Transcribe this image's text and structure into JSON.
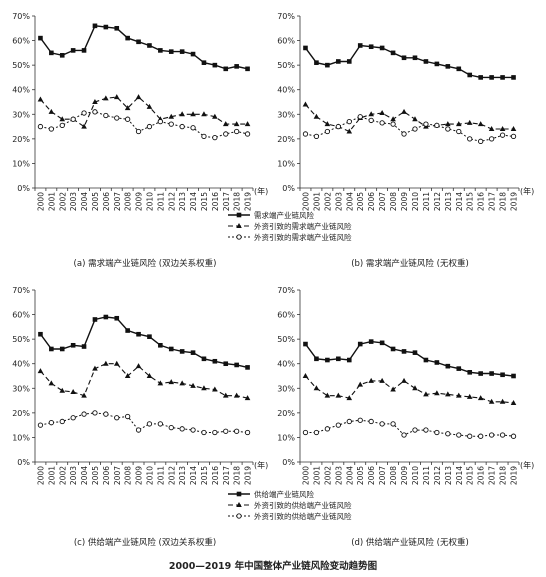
{
  "figure_title": "2000—2019 年中国整体产业链风险变动趋势图",
  "axis_unit": "(年)",
  "legends": [
    {
      "items": [
        {
          "label": "需求端产业链风险",
          "style": "solid-square"
        },
        {
          "label": "外资引致的需求端产业链风险",
          "style": "dash-triangle"
        },
        {
          "label": "外资引致的需求端产业链风险",
          "style": "dot-circle"
        }
      ]
    },
    {
      "items": [
        {
          "label": "供给端产业链风险",
          "style": "solid-square"
        },
        {
          "label": "外资引致的供给端产业链风险",
          "style": "dash-triangle"
        },
        {
          "label": "外资引致的供给端产业链风险",
          "style": "dot-circle"
        }
      ]
    }
  ],
  "chart_data": [
    {
      "type": "line",
      "caption": "(a) 需求端产业链风险 (双边关系权重)",
      "categories": [
        "2000",
        "2001",
        "2002",
        "2003",
        "2004",
        "2005",
        "2006",
        "2007",
        "2008",
        "2009",
        "2010",
        "2011",
        "2012",
        "2013",
        "2014",
        "2015",
        "2016",
        "2017",
        "2018",
        "2019"
      ],
      "ylim": [
        0,
        70
      ],
      "yticks": [
        "0%",
        "10%",
        "20%",
        "30%",
        "40%",
        "50%",
        "60%",
        "70%"
      ],
      "series": [
        {
          "style": "solid-square",
          "values": [
            61,
            55,
            54,
            56,
            56,
            66,
            65.5,
            65,
            61,
            59.5,
            58,
            56,
            55.5,
            55.5,
            54.5,
            51,
            50,
            48.5,
            49.5,
            48.5
          ]
        },
        {
          "style": "dash-triangle",
          "values": [
            36,
            31,
            28,
            28,
            25,
            35,
            36.5,
            37,
            32.5,
            37,
            33,
            28,
            29,
            30,
            30,
            30,
            29,
            26,
            26,
            26
          ]
        },
        {
          "style": "dot-circle",
          "values": [
            25,
            24,
            25.5,
            28,
            30.5,
            31,
            29.5,
            28.5,
            28,
            23,
            25,
            27,
            26,
            25,
            24.5,
            21,
            20.5,
            22,
            23,
            22
          ]
        }
      ]
    },
    {
      "type": "line",
      "caption": "(b) 需求端产业链风险 (无权重)",
      "categories": [
        "2000",
        "2001",
        "2002",
        "2003",
        "2004",
        "2005",
        "2006",
        "2007",
        "2008",
        "2009",
        "2010",
        "2011",
        "2012",
        "2013",
        "2014",
        "2015",
        "2016",
        "2017",
        "2018",
        "2019"
      ],
      "ylim": [
        0,
        70
      ],
      "yticks": [
        "0%",
        "10%",
        "20%",
        "30%",
        "40%",
        "50%",
        "60%",
        "70%"
      ],
      "series": [
        {
          "style": "solid-square",
          "values": [
            57,
            51,
            50,
            51.5,
            51.5,
            58,
            57.5,
            57,
            55,
            53,
            53,
            51.5,
            50.5,
            49.5,
            48.5,
            46,
            45,
            45,
            45,
            45
          ]
        },
        {
          "style": "dash-triangle",
          "values": [
            34,
            29,
            26,
            25,
            23,
            28.5,
            30,
            30.5,
            28,
            31,
            28,
            25,
            25.5,
            26,
            26,
            26.5,
            26,
            24,
            24,
            24
          ]
        },
        {
          "style": "dot-circle",
          "values": [
            22,
            21,
            23,
            25,
            27,
            29,
            27.5,
            26.5,
            26,
            22,
            24,
            26,
            25.5,
            24,
            23,
            20,
            19,
            20,
            21.5,
            21
          ]
        }
      ]
    },
    {
      "type": "line",
      "caption": "(c) 供给端产业链风险 (双边关系权重)",
      "categories": [
        "2000",
        "2001",
        "2002",
        "2003",
        "2004",
        "2005",
        "2006",
        "2007",
        "2008",
        "2009",
        "2010",
        "2011",
        "2012",
        "2013",
        "2014",
        "2015",
        "2016",
        "2017",
        "2018",
        "2019"
      ],
      "ylim": [
        0,
        70
      ],
      "yticks": [
        "0%",
        "10%",
        "20%",
        "30%",
        "40%",
        "50%",
        "60%",
        "70%"
      ],
      "series": [
        {
          "style": "solid-square",
          "values": [
            52,
            46,
            46,
            47.5,
            47,
            58,
            59,
            58.5,
            53.5,
            52,
            51,
            47.5,
            46,
            45,
            44.5,
            42,
            41,
            40,
            39.5,
            38.5
          ]
        },
        {
          "style": "dash-triangle",
          "values": [
            37,
            32,
            29,
            28.5,
            27,
            38,
            40,
            40,
            35,
            39,
            35,
            32,
            32.5,
            32,
            31,
            30,
            29.5,
            27,
            27,
            26
          ]
        },
        {
          "style": "dot-circle",
          "values": [
            15,
            16,
            16.5,
            18,
            19.5,
            20,
            19.5,
            18,
            18.5,
            13,
            15.5,
            15.5,
            14,
            13.5,
            13,
            12,
            12,
            12.5,
            12.5,
            12
          ]
        }
      ]
    },
    {
      "type": "line",
      "caption": "(d) 供给端产业链风险 (无权重)",
      "categories": [
        "2000",
        "2001",
        "2002",
        "2003",
        "2004",
        "2005",
        "2006",
        "2007",
        "2008",
        "2009",
        "2010",
        "2011",
        "2012",
        "2013",
        "2014",
        "2015",
        "2016",
        "2017",
        "2018",
        "2019"
      ],
      "ylim": [
        0,
        70
      ],
      "yticks": [
        "0%",
        "10%",
        "20%",
        "30%",
        "40%",
        "50%",
        "60%",
        "70%"
      ],
      "series": [
        {
          "style": "solid-square",
          "values": [
            48,
            42,
            41.5,
            42,
            41.5,
            48,
            49,
            48.5,
            46,
            45,
            44.5,
            41.5,
            40.5,
            39,
            38,
            36.5,
            36,
            36,
            35.5,
            35
          ]
        },
        {
          "style": "dash-triangle",
          "values": [
            35,
            30,
            27,
            27,
            26,
            31.5,
            33,
            33,
            29.5,
            33,
            30,
            27.5,
            28,
            27.5,
            27,
            26.5,
            26,
            24.5,
            24.5,
            24
          ]
        },
        {
          "style": "dot-circle",
          "values": [
            12,
            12,
            13.5,
            15,
            16.5,
            17,
            16.5,
            15.5,
            15.5,
            11,
            13,
            13,
            12,
            11.5,
            11,
            10.5,
            10.5,
            11,
            11,
            10.5
          ]
        }
      ]
    }
  ]
}
